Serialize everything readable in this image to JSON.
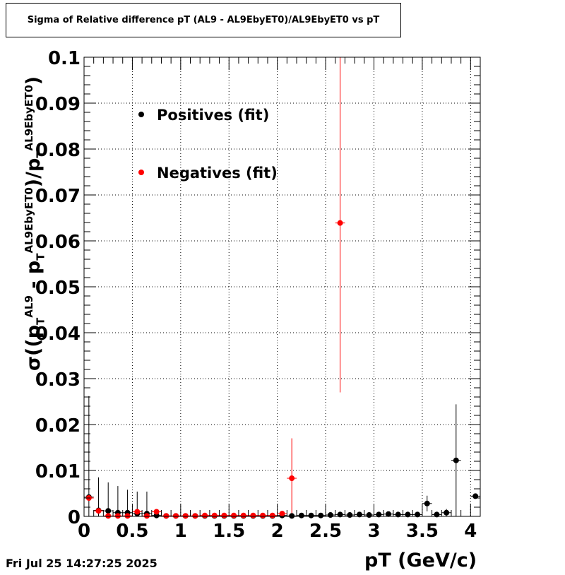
{
  "title": "Sigma of Relative difference pT (AL9 - AL9EbyET0)/AL9EbyET0 vs pT",
  "footer_date": "Fri Jul 25 14:27:25 2025",
  "chart_data": {
    "type": "scatter",
    "title": "Sigma of Relative difference pT (AL9 - AL9EbyET0)/AL9EbyET0 vs pT",
    "xlabel": "pT (GeV/c)",
    "ylabel": {
      "sigma": "σ",
      "open": "((p",
      "sup1": "AL9",
      "sub1": "T",
      "minus": " - p",
      "sup2": "AL9EbyET0",
      "sub2": "T",
      "div": ")/p",
      "sup3": "AL9EbyET0",
      "sub3": "T",
      "close": ")"
    },
    "xlim": [
      0,
      4.1
    ],
    "ylim": [
      0,
      0.1
    ],
    "grid": true,
    "x_ticks": [
      {
        "value": 0,
        "label": "0"
      },
      {
        "value": 0.5,
        "label": "0.5"
      },
      {
        "value": 1,
        "label": "1"
      },
      {
        "value": 1.5,
        "label": "1.5"
      },
      {
        "value": 2,
        "label": "2"
      },
      {
        "value": 2.5,
        "label": "2.5"
      },
      {
        "value": 3,
        "label": "3"
      },
      {
        "value": 3.5,
        "label": "3.5"
      },
      {
        "value": 4,
        "label": "4"
      }
    ],
    "y_ticks": [
      {
        "value": 0,
        "label": "0"
      },
      {
        "value": 0.01,
        "label": "0.01"
      },
      {
        "value": 0.02,
        "label": "0.02"
      },
      {
        "value": 0.03,
        "label": "0.03"
      },
      {
        "value": 0.04,
        "label": "0.04"
      },
      {
        "value": 0.05,
        "label": "0.05"
      },
      {
        "value": 0.06,
        "label": "0.06"
      },
      {
        "value": 0.07,
        "label": "0.07"
      },
      {
        "value": 0.08,
        "label": "0.08"
      },
      {
        "value": 0.09,
        "label": "0.09"
      },
      {
        "value": 0.1,
        "label": "0.1"
      }
    ],
    "legend_position": "top-left",
    "series": [
      {
        "name": "Positives (fit)",
        "color": "#000000",
        "points": [
          {
            "x": 0.05,
            "y": 0.0042,
            "err": 0.022
          },
          {
            "x": 0.15,
            "y": 0.0013,
            "err": 0.0072
          },
          {
            "x": 0.25,
            "y": 0.0012,
            "err": 0.0062
          },
          {
            "x": 0.35,
            "y": 0.0008,
            "err": 0.0058
          },
          {
            "x": 0.45,
            "y": 0.0008,
            "err": 0.005
          },
          {
            "x": 0.55,
            "y": 0.0006,
            "err": 0.0048
          },
          {
            "x": 0.65,
            "y": 0.0006,
            "err": 0.0048
          },
          {
            "x": 0.75,
            "y": 0.0002,
            "err": 0.0006
          },
          {
            "x": 0.85,
            "y": 0.0001,
            "err": 0.0003
          },
          {
            "x": 0.95,
            "y": 0.0001,
            "err": 0.0003
          },
          {
            "x": 1.05,
            "y": 0.0001,
            "err": 0.0002
          },
          {
            "x": 1.15,
            "y": 0.0001,
            "err": 0.0002
          },
          {
            "x": 1.25,
            "y": 0.0001,
            "err": 0.0002
          },
          {
            "x": 1.35,
            "y": 0.0001,
            "err": 0.0002
          },
          {
            "x": 1.45,
            "y": 0.0001,
            "err": 0.0002
          },
          {
            "x": 1.55,
            "y": 0.0001,
            "err": 0.0002
          },
          {
            "x": 1.65,
            "y": 0.0001,
            "err": 0.0002
          },
          {
            "x": 1.75,
            "y": 0.0001,
            "err": 0.0002
          },
          {
            "x": 1.85,
            "y": 0.0001,
            "err": 0.0002
          },
          {
            "x": 1.95,
            "y": 0.0001,
            "err": 0.0002
          },
          {
            "x": 2.05,
            "y": 0.0002,
            "err": 0.0003
          },
          {
            "x": 2.15,
            "y": 0.0001,
            "err": 0.0003
          },
          {
            "x": 2.25,
            "y": 0.0002,
            "err": 0.0003
          },
          {
            "x": 2.35,
            "y": 0.0002,
            "err": 0.0003
          },
          {
            "x": 2.45,
            "y": 0.0002,
            "err": 0.0003
          },
          {
            "x": 2.55,
            "y": 0.0003,
            "err": 0.0003
          },
          {
            "x": 2.65,
            "y": 0.0004,
            "err": 0.0004
          },
          {
            "x": 2.75,
            "y": 0.0003,
            "err": 0.0003
          },
          {
            "x": 2.85,
            "y": 0.0004,
            "err": 0.0003
          },
          {
            "x": 2.95,
            "y": 0.0003,
            "err": 0.0003
          },
          {
            "x": 3.05,
            "y": 0.0004,
            "err": 0.0003
          },
          {
            "x": 3.15,
            "y": 0.0005,
            "err": 0.0003
          },
          {
            "x": 3.25,
            "y": 0.0004,
            "err": 0.0003
          },
          {
            "x": 3.35,
            "y": 0.0004,
            "err": 0.0003
          },
          {
            "x": 3.45,
            "y": 0.0004,
            "err": 0.0003
          },
          {
            "x": 3.55,
            "y": 0.0028,
            "err": 0.0017
          },
          {
            "x": 3.65,
            "y": 0.0004,
            "err": 0.0005
          },
          {
            "x": 3.75,
            "y": 0.0008,
            "err": 0.0008
          },
          {
            "x": 3.85,
            "y": 0.0122,
            "err": 0.0122
          },
          {
            "x": 4.05,
            "y": 0.0044,
            "err": 0.0005
          }
        ]
      },
      {
        "name": "Negatives (fit)",
        "color": "#ff0000",
        "points": [
          {
            "x": 0.05,
            "y": 0.004,
            "err": 0.0006
          },
          {
            "x": 0.15,
            "y": 0.0012,
            "err": 0.0004
          },
          {
            "x": 0.25,
            "y": 0.0001,
            "err": 0.0002
          },
          {
            "x": 0.35,
            "y": 0.0001,
            "err": 0.0002
          },
          {
            "x": 0.45,
            "y": 0.0001,
            "err": 0.0002
          },
          {
            "x": 0.55,
            "y": 0.001,
            "err": 0.0004
          },
          {
            "x": 0.65,
            "y": 0.0001,
            "err": 0.0002
          },
          {
            "x": 0.75,
            "y": 0.001,
            "err": 0.0004
          },
          {
            "x": 0.85,
            "y": 0.0001,
            "err": 0.0002
          },
          {
            "x": 0.95,
            "y": 0.0001,
            "err": 0.0002
          },
          {
            "x": 1.05,
            "y": 0.0001,
            "err": 0.0002
          },
          {
            "x": 1.15,
            "y": 0.0001,
            "err": 0.0002
          },
          {
            "x": 1.25,
            "y": 0.0002,
            "err": 0.0002
          },
          {
            "x": 1.35,
            "y": 0.0002,
            "err": 0.0002
          },
          {
            "x": 1.45,
            "y": 0.0002,
            "err": 0.0002
          },
          {
            "x": 1.55,
            "y": 0.0002,
            "err": 0.0002
          },
          {
            "x": 1.65,
            "y": 0.0002,
            "err": 0.0002
          },
          {
            "x": 1.75,
            "y": 0.0002,
            "err": 0.0002
          },
          {
            "x": 1.85,
            "y": 0.0002,
            "err": 0.0002
          },
          {
            "x": 1.95,
            "y": 0.0002,
            "err": 0.0002
          },
          {
            "x": 2.05,
            "y": 0.0006,
            "err": 0.0004
          },
          {
            "x": 2.15,
            "y": 0.0083,
            "err": 0.0087
          },
          {
            "x": 2.65,
            "y": 0.0639,
            "err": 0.0369
          }
        ]
      }
    ]
  }
}
